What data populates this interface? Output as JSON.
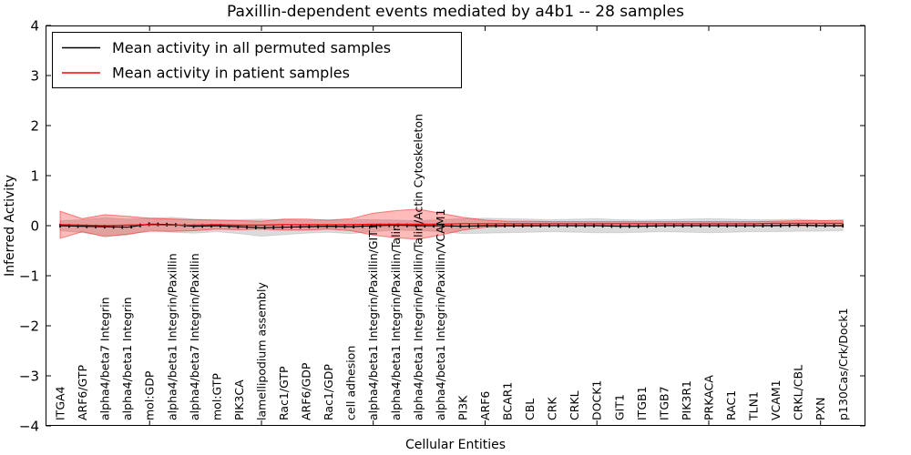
{
  "chart_data": {
    "type": "line",
    "title": "Paxillin-dependent events mediated by a4b1 -- 28 samples",
    "xlabel": "Cellular Entities",
    "ylabel": "Inferred Activity",
    "ylim": [
      -4,
      4
    ],
    "ytick_values": [
      -4,
      -3,
      -2,
      -1,
      0,
      1,
      2,
      3,
      4
    ],
    "ytick_labels": [
      "−4",
      "−3",
      "−2",
      "−1",
      "0",
      "1",
      "2",
      "3",
      "4"
    ],
    "xtick_mark_indices": [
      4,
      9,
      14,
      19,
      24,
      29,
      34
    ],
    "grid": false,
    "legend_position": "upper left",
    "categories": [
      "ITGA4",
      "ARF6/GTP",
      "alpha4/beta7 Integrin",
      "alpha4/beta1 Integrin",
      "mol:GDP",
      "alpha4/beta1 Integrin/Paxillin",
      "alpha4/beta7 Integrin/Paxillin",
      "mol:GTP",
      "PIK3CA",
      "lamellipodium assembly",
      "Rac1/GTP",
      "ARF6/GDP",
      "Rac1/GDP",
      "cell adhesion",
      "alpha4/beta1 Integrin/Paxillin/GIT1",
      "alpha4/beta1 Integrin/Paxillin/Talin",
      "alpha4/beta1 Integrin/Paxillin/Talin/Actin Cytoskeleton",
      "alpha4/beta1 Integrin/Paxillin/VCAM1",
      "PI3K",
      "ARF6",
      "BCAR1",
      "CBL",
      "CRK",
      "CRKL",
      "DOCK1",
      "GIT1",
      "ITGB1",
      "ITGB7",
      "PIK3R1",
      "PRKACA",
      "RAC1",
      "TLN1",
      "VCAM1",
      "CRKL/CBL",
      "PXN",
      "p130Cas/Crk/Dock1"
    ],
    "series": [
      {
        "name": "Mean activity in all permuted samples",
        "color": "#000000",
        "band_color": "rgba(0,0,0,0.14)",
        "band_edge_color": "rgba(0,0,0,0.10)",
        "mean": [
          0.0,
          -0.01,
          -0.02,
          -0.03,
          0.03,
          0.02,
          -0.01,
          0.0,
          -0.02,
          -0.04,
          -0.03,
          -0.02,
          -0.01,
          -0.02,
          0.0,
          0.01,
          0.0,
          0.0,
          -0.01,
          0.0,
          0.0,
          0.0,
          0.0,
          0.0,
          0.0,
          -0.01,
          -0.01,
          0.0,
          0.0,
          0.0,
          0.0,
          0.0,
          0.0,
          0.01,
          0.0,
          0.0
        ],
        "std": [
          0.1,
          0.13,
          0.18,
          0.16,
          0.12,
          0.15,
          0.14,
          0.12,
          0.14,
          0.17,
          0.15,
          0.13,
          0.12,
          0.14,
          0.12,
          0.1,
          0.1,
          0.12,
          0.15,
          0.15,
          0.14,
          0.13,
          0.12,
          0.13,
          0.14,
          0.13,
          0.12,
          0.12,
          0.13,
          0.14,
          0.13,
          0.12,
          0.12,
          0.12,
          0.11,
          0.1
        ]
      },
      {
        "name": "Mean activity in patient samples",
        "color": "#ff0000",
        "band_color": "rgba(255,0,0,0.27)",
        "band_edge_color": "rgba(255,0,0,0.45)",
        "mean": [
          0.02,
          0.01,
          0.0,
          0.01,
          0.02,
          0.01,
          0.01,
          0.02,
          0.01,
          0.01,
          0.02,
          0.02,
          0.02,
          0.02,
          0.03,
          0.03,
          0.03,
          0.03,
          0.04,
          0.04,
          0.04,
          0.04,
          0.04,
          0.04,
          0.04,
          0.04,
          0.04,
          0.04,
          0.04,
          0.04,
          0.04,
          0.04,
          0.05,
          0.05,
          0.05,
          0.05
        ],
        "std": [
          0.27,
          0.13,
          0.22,
          0.18,
          0.13,
          0.12,
          0.11,
          0.09,
          0.09,
          0.08,
          0.11,
          0.11,
          0.09,
          0.12,
          0.22,
          0.27,
          0.3,
          0.22,
          0.13,
          0.07,
          0.05,
          0.05,
          0.04,
          0.04,
          0.04,
          0.04,
          0.04,
          0.04,
          0.04,
          0.04,
          0.04,
          0.04,
          0.04,
          0.05,
          0.05,
          0.06
        ]
      }
    ]
  }
}
